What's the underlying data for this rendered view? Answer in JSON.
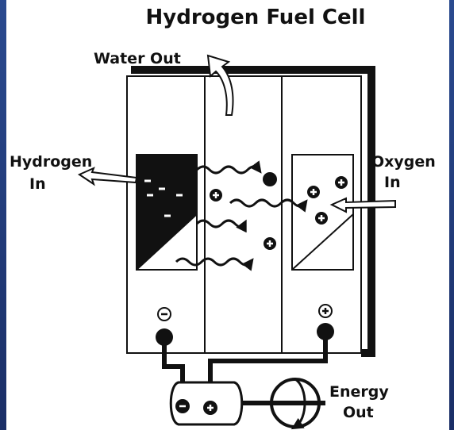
{
  "title": "Hydrogen Fuel Cell",
  "labels": {
    "water_out": "Water Out",
    "hydrogen_in": [
      "Hydrogen",
      "In"
    ],
    "oxygen_in": [
      "Oxygen",
      "In"
    ],
    "energy_out": [
      "Energy",
      "Out"
    ]
  }
}
